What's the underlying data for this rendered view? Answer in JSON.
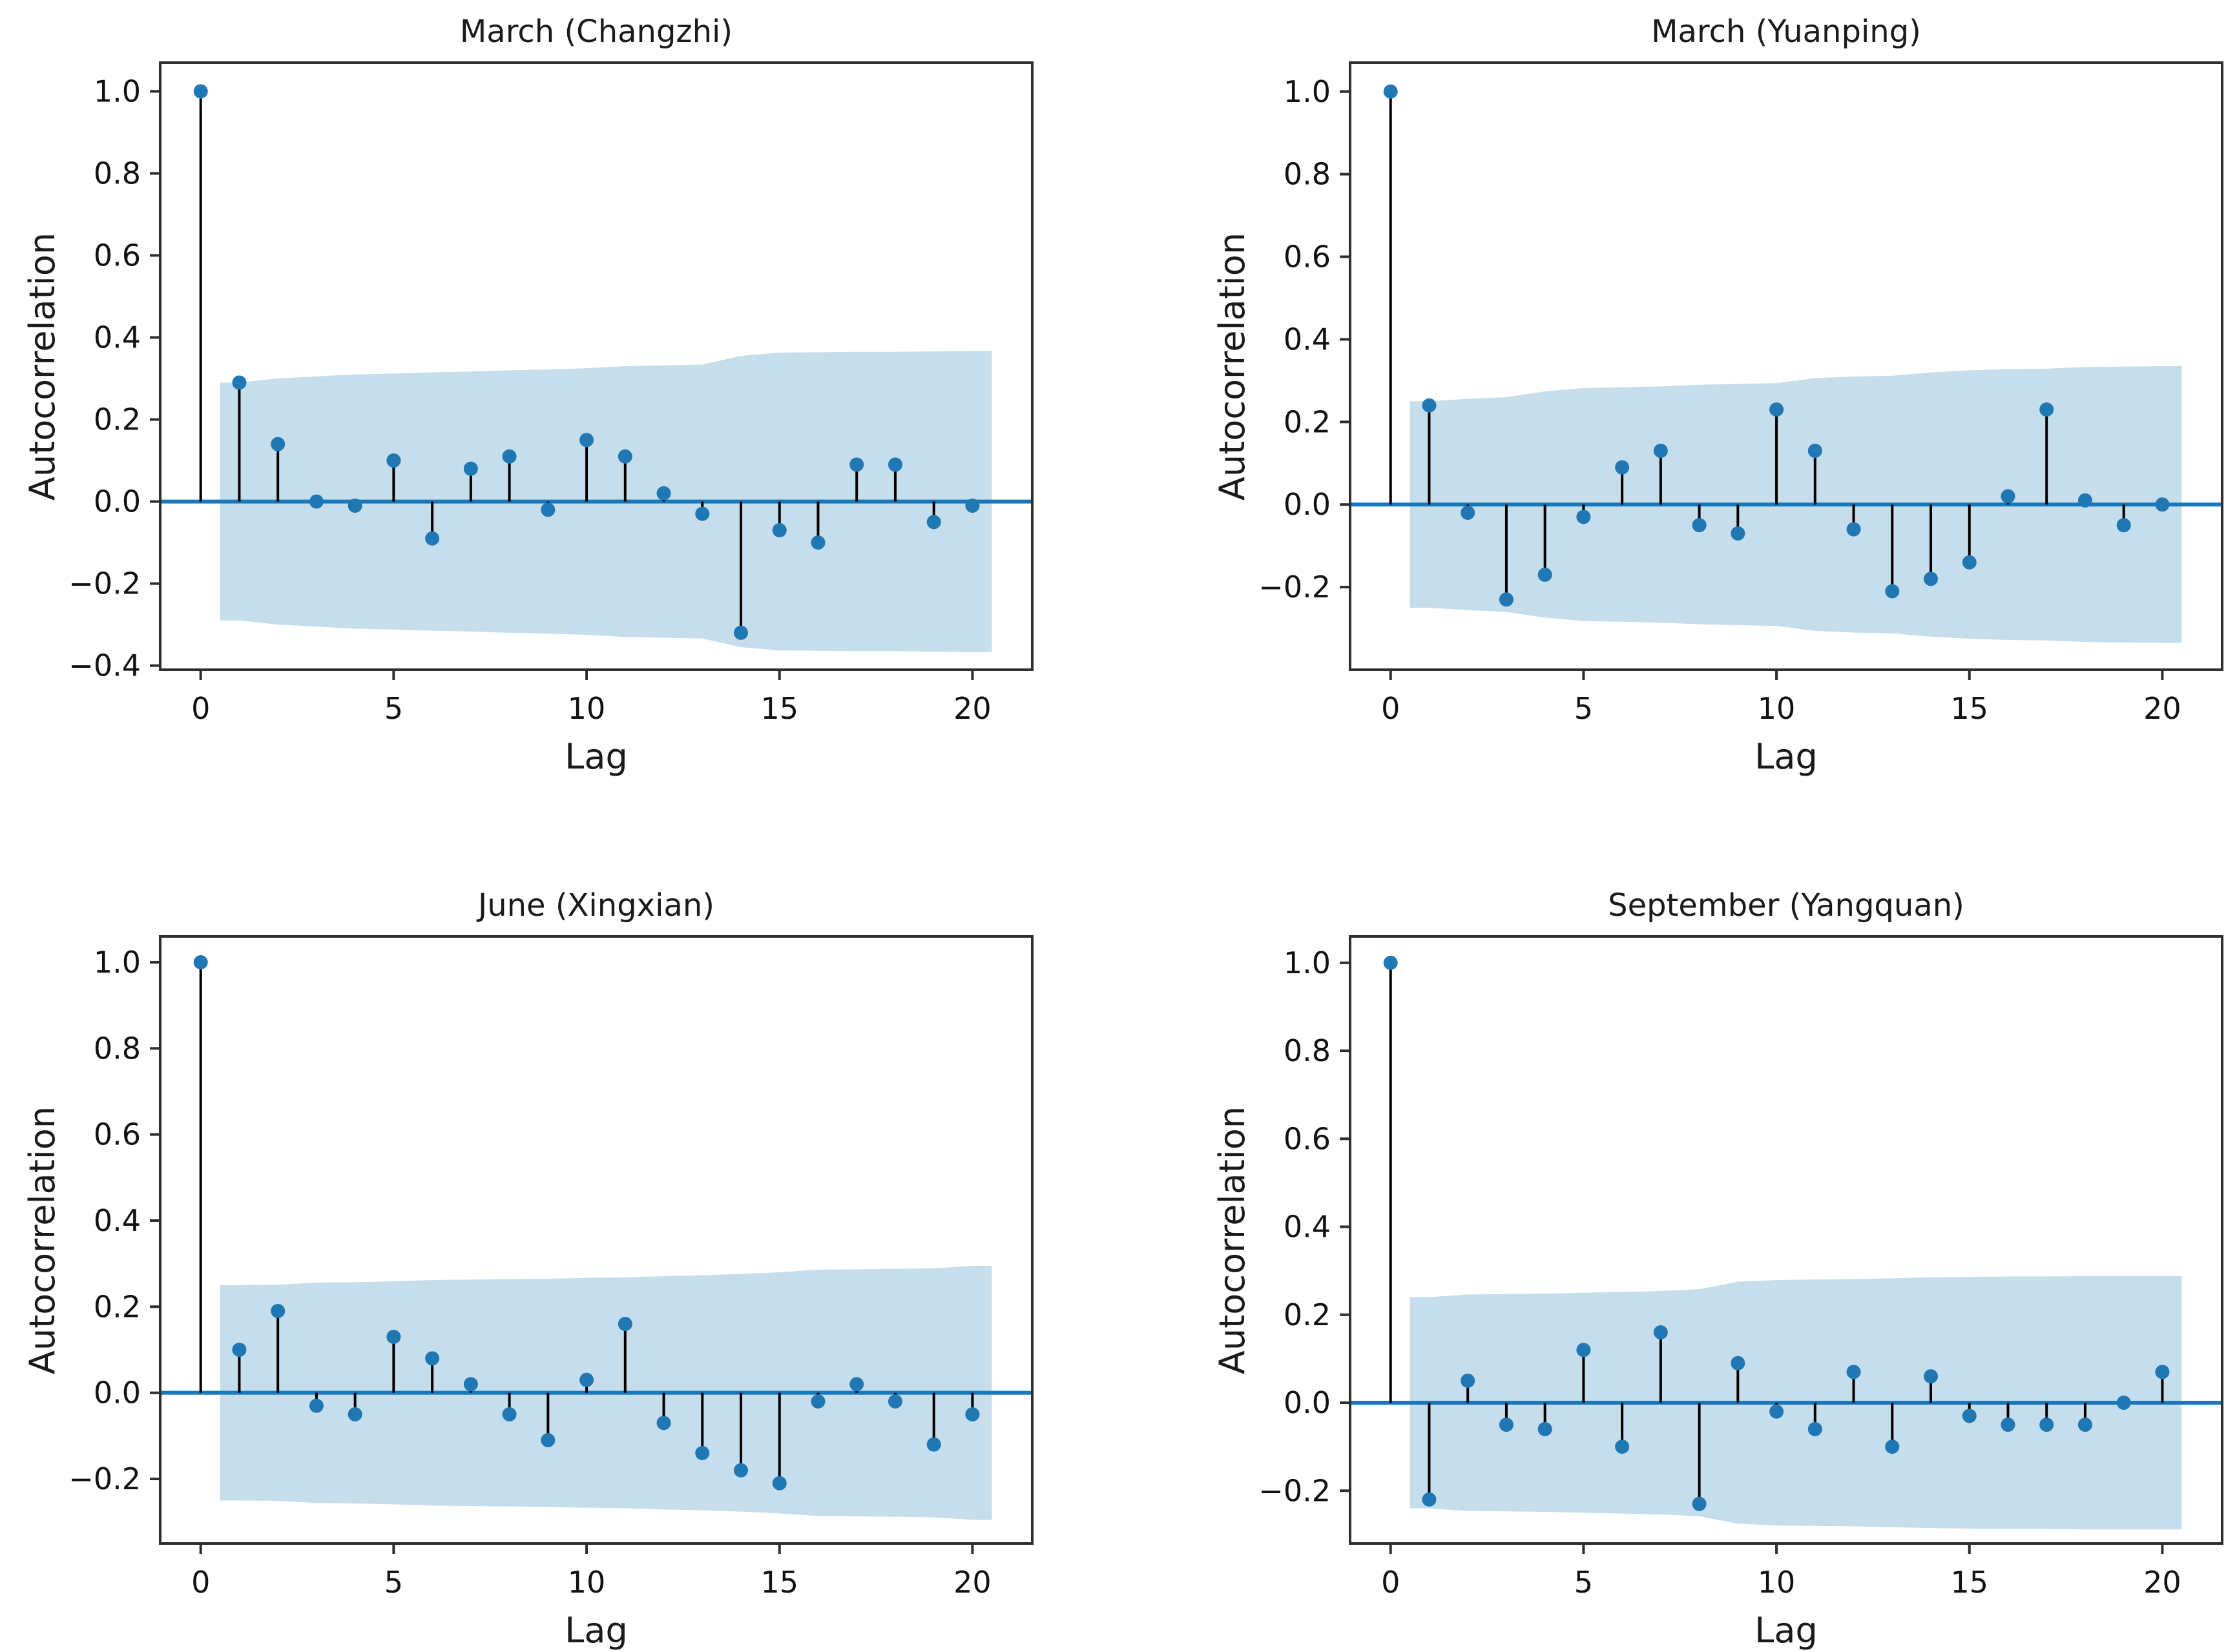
{
  "figure": {
    "background": "#ffffff",
    "dot_color": "#1f77b4",
    "stem_color": "#000000",
    "zero_line_color": "#1778bc",
    "band_color": "#c6ddec",
    "spine_color": "#2e2e2e",
    "text_color": "#111111"
  },
  "chart_data": [
    {
      "type": "stem",
      "title": "March (Changzhi)",
      "xlabel": "Lag",
      "ylabel": "Autocorrelation",
      "x": [
        0,
        1,
        2,
        3,
        4,
        5,
        6,
        7,
        8,
        9,
        10,
        11,
        12,
        13,
        14,
        15,
        16,
        17,
        18,
        19,
        20
      ],
      "values": [
        1.0,
        0.29,
        0.14,
        0.0,
        -0.01,
        0.1,
        -0.09,
        0.08,
        0.11,
        -0.02,
        0.15,
        0.11,
        0.02,
        -0.03,
        -0.32,
        -0.07,
        -0.1,
        0.09,
        0.09,
        -0.05,
        -0.01
      ],
      "confidence_band": [
        0.29,
        0.3,
        0.305,
        0.31,
        0.312,
        0.315,
        0.317,
        0.32,
        0.322,
        0.325,
        0.33,
        0.332,
        0.334,
        0.355,
        0.363,
        0.364,
        0.365,
        0.365,
        0.366,
        0.367
      ],
      "band_x_start": 0.5,
      "band_x_end": 20.5,
      "xlim": [
        -1.05,
        21.55
      ],
      "ylim": [
        -0.41,
        1.07
      ],
      "grid": false,
      "legend": null,
      "yticks": [
        1.0,
        0.8,
        0.6,
        0.4,
        0.2,
        0.0,
        -0.2,
        -0.4
      ],
      "ytick_labels": [
        "1.0",
        "0.8",
        "0.6",
        "0.4",
        "0.2",
        "0.0",
        "−0.2",
        "−0.4"
      ],
      "xticks": [
        0,
        5,
        10,
        15,
        20
      ],
      "xtick_labels": [
        "0",
        "5",
        "10",
        "15",
        "20"
      ]
    },
    {
      "type": "stem",
      "title": "March (Yuanping)",
      "xlabel": "Lag",
      "ylabel": "Autocorrelation",
      "x": [
        0,
        1,
        2,
        3,
        4,
        5,
        6,
        7,
        8,
        9,
        10,
        11,
        12,
        13,
        14,
        15,
        16,
        17,
        18,
        19,
        20
      ],
      "values": [
        1.0,
        0.24,
        -0.02,
        -0.23,
        -0.17,
        -0.03,
        0.09,
        0.13,
        -0.05,
        -0.07,
        0.23,
        0.13,
        -0.06,
        -0.21,
        -0.18,
        -0.14,
        0.02,
        0.23,
        0.01,
        -0.05,
        0.0
      ],
      "confidence_band": [
        0.25,
        0.256,
        0.26,
        0.274,
        0.282,
        0.284,
        0.286,
        0.29,
        0.292,
        0.294,
        0.306,
        0.31,
        0.312,
        0.32,
        0.325,
        0.328,
        0.329,
        0.333,
        0.334,
        0.335
      ],
      "band_x_start": 0.5,
      "band_x_end": 20.5,
      "xlim": [
        -1.05,
        21.55
      ],
      "ylim": [
        -0.4,
        1.07
      ],
      "grid": false,
      "legend": null,
      "yticks": [
        1.0,
        0.8,
        0.6,
        0.4,
        0.2,
        0.0,
        -0.2
      ],
      "ytick_labels": [
        "1.0",
        "0.8",
        "0.6",
        "0.4",
        "0.2",
        "0.0",
        "−0.2"
      ],
      "xticks": [
        0,
        5,
        10,
        15,
        20
      ],
      "xtick_labels": [
        "0",
        "5",
        "10",
        "15",
        "20"
      ]
    },
    {
      "type": "stem",
      "title": "June (Xingxian)",
      "xlabel": "Lag",
      "ylabel": "Autocorrelation",
      "x": [
        0,
        1,
        2,
        3,
        4,
        5,
        6,
        7,
        8,
        9,
        10,
        11,
        12,
        13,
        14,
        15,
        16,
        17,
        18,
        19,
        20
      ],
      "values": [
        1.0,
        0.1,
        0.19,
        -0.03,
        -0.05,
        0.13,
        0.08,
        0.02,
        -0.05,
        -0.11,
        0.03,
        0.16,
        -0.07,
        -0.14,
        -0.18,
        -0.21,
        -0.02,
        0.02,
        -0.02,
        -0.12,
        -0.05
      ],
      "confidence_band": [
        0.25,
        0.251,
        0.256,
        0.257,
        0.259,
        0.262,
        0.263,
        0.264,
        0.265,
        0.267,
        0.268,
        0.271,
        0.273,
        0.276,
        0.28,
        0.286,
        0.287,
        0.288,
        0.289,
        0.295
      ],
      "band_x_start": 0.5,
      "band_x_end": 20.5,
      "xlim": [
        -1.05,
        21.55
      ],
      "ylim": [
        -0.35,
        1.06
      ],
      "grid": false,
      "legend": null,
      "yticks": [
        1.0,
        0.8,
        0.6,
        0.4,
        0.2,
        0.0,
        -0.2
      ],
      "ytick_labels": [
        "1.0",
        "0.8",
        "0.6",
        "0.4",
        "0.2",
        "0.0",
        "−0.2"
      ],
      "xticks": [
        0,
        5,
        10,
        15,
        20
      ],
      "xtick_labels": [
        "0",
        "5",
        "10",
        "15",
        "20"
      ]
    },
    {
      "type": "stem",
      "title": "September (Yangquan)",
      "xlabel": "Lag",
      "ylabel": "Autocorrelation",
      "x": [
        0,
        1,
        2,
        3,
        4,
        5,
        6,
        7,
        8,
        9,
        10,
        11,
        12,
        13,
        14,
        15,
        16,
        17,
        18,
        19,
        20
      ],
      "values": [
        1.0,
        -0.22,
        0.05,
        -0.05,
        -0.06,
        0.12,
        -0.1,
        0.16,
        -0.23,
        0.09,
        -0.02,
        -0.06,
        0.07,
        -0.1,
        0.06,
        -0.03,
        -0.05,
        -0.05,
        -0.05,
        0.0,
        0.07
      ],
      "confidence_band": [
        0.24,
        0.246,
        0.247,
        0.248,
        0.25,
        0.252,
        0.254,
        0.258,
        0.275,
        0.279,
        0.28,
        0.281,
        0.283,
        0.285,
        0.286,
        0.287,
        0.287,
        0.288,
        0.288,
        0.288
      ],
      "band_x_start": 0.5,
      "band_x_end": 20.5,
      "xlim": [
        -1.05,
        21.55
      ],
      "ylim": [
        -0.32,
        1.06
      ],
      "grid": false,
      "legend": null,
      "yticks": [
        1.0,
        0.8,
        0.6,
        0.4,
        0.2,
        0.0,
        -0.2
      ],
      "ytick_labels": [
        "1.0",
        "0.8",
        "0.6",
        "0.4",
        "0.2",
        "0.0",
        "−0.2"
      ],
      "xticks": [
        0,
        5,
        10,
        15,
        20
      ],
      "xtick_labels": [
        "0",
        "5",
        "10",
        "15",
        "20"
      ]
    }
  ]
}
